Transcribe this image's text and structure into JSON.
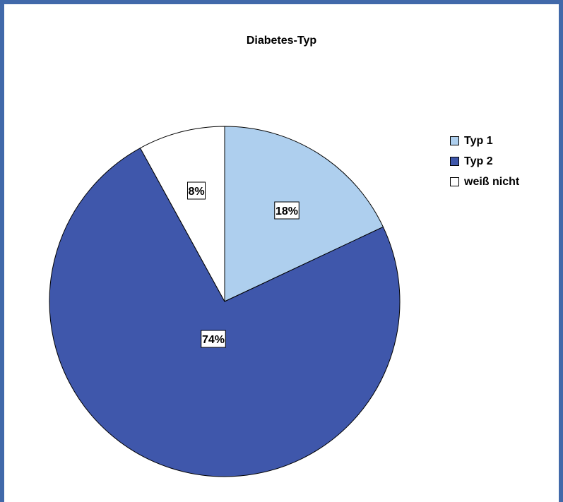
{
  "chart_data": {
    "type": "pie",
    "title": "Diabetes-Typ",
    "categories": [
      "Typ 1",
      "Typ 2",
      "weiß nicht"
    ],
    "values": [
      18,
      74,
      8
    ],
    "labels": [
      "18%",
      "74%",
      "8%"
    ],
    "colors": [
      "#aecfee",
      "#3f57ab",
      "#ffffff"
    ],
    "start_angle": "12 o'clock, clockwise",
    "legend_position": "right"
  },
  "colors": {
    "frame": "#4169aa",
    "outline": "#000000"
  }
}
